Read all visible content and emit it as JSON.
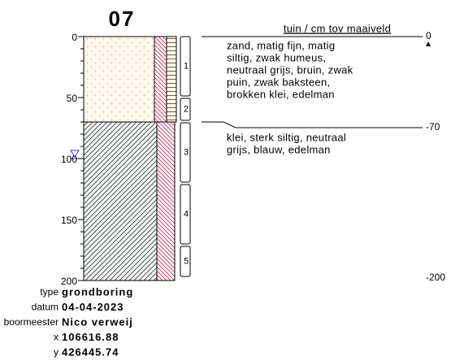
{
  "title": "07",
  "header": "tuin / cm tov maaiveld",
  "depth_ticks": [
    0,
    50,
    100,
    150,
    200
  ],
  "boundaries": [
    0,
    -70,
    -200
  ],
  "layers": [
    {
      "lines": [
        "zand, matig fijn, matig",
        "siltig, zwak humeus,",
        "neutraal grijs, bruin, zwak",
        "puin, zwak baksteen,",
        "brokken klei, edelman"
      ]
    },
    {
      "lines": [
        "klei, sterk siltig, neutraal",
        "grijs, blauw, edelman"
      ]
    }
  ],
  "samples": [
    "1",
    "2",
    "3",
    "4",
    "5"
  ],
  "info": [
    {
      "label": "type",
      "value": "grondboring"
    },
    {
      "label": "datum",
      "value": "04-04-2023"
    },
    {
      "label": "boormeester",
      "value": "Nico verweij"
    },
    {
      "label": "x",
      "value": "106616.88"
    },
    {
      "label": "y",
      "value": "426445.74"
    }
  ]
}
